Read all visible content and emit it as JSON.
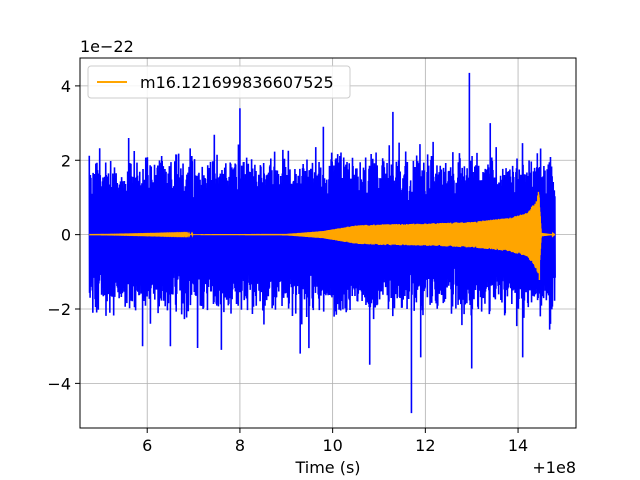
{
  "chart_data": {
    "type": "line",
    "title": "",
    "xlabel": "Time (s)",
    "ylabel": "",
    "x_offset_label": "+1e8",
    "y_scale_label": "1e−22",
    "xlim": [
      4.55,
      15.25
    ],
    "ylim": [
      -5.2,
      4.75
    ],
    "x_ticks": [
      6,
      8,
      10,
      12,
      14
    ],
    "x_tick_labels": [
      "6",
      "8",
      "10",
      "12",
      "14"
    ],
    "y_ticks": [
      -4,
      -2,
      0,
      2,
      4
    ],
    "y_tick_labels": [
      "−4",
      "−2",
      "0",
      "2",
      "4"
    ],
    "grid": true,
    "legend_position": "upper-left",
    "series": [
      {
        "name": "",
        "color": "#0000ff",
        "kind": "noise",
        "x_range": [
          4.75,
          14.8
        ],
        "typical_amplitude": 1.9,
        "extreme_max": 4.35,
        "extreme_min": -4.8
      },
      {
        "name": "m16.121699836607525",
        "color": "#ffa500",
        "kind": "chirp",
        "x_range": [
          4.75,
          14.8
        ],
        "envelope": [
          {
            "x": 4.75,
            "amp": 0.0
          },
          {
            "x": 9.0,
            "amp": 0.02
          },
          {
            "x": 9.8,
            "amp": 0.1
          },
          {
            "x": 10.5,
            "amp": 0.25
          },
          {
            "x": 11.0,
            "amp": 0.28
          },
          {
            "x": 12.0,
            "amp": 0.3
          },
          {
            "x": 13.0,
            "amp": 0.35
          },
          {
            "x": 13.8,
            "amp": 0.45
          },
          {
            "x": 14.2,
            "amp": 0.6
          },
          {
            "x": 14.38,
            "amp": 0.9
          },
          {
            "x": 14.45,
            "amp": 1.15
          },
          {
            "x": 14.5,
            "amp": 0.05
          },
          {
            "x": 14.8,
            "amp": 0.0
          }
        ]
      }
    ]
  }
}
